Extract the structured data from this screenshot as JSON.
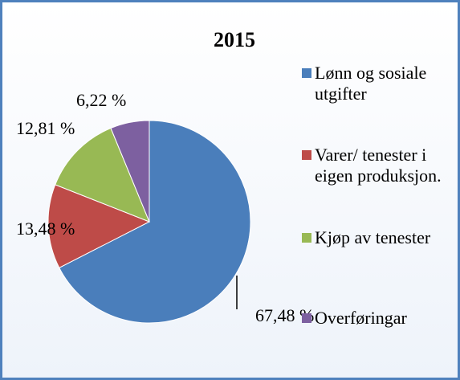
{
  "chart_data": {
    "type": "pie",
    "title": "2015",
    "categories": [
      "Lønn og sosiale utgifter",
      "Varer/ tenester i eigen produksjon.",
      "Kjøp av tenester",
      "Overføringar"
    ],
    "values": [
      67.48,
      13.48,
      12.81,
      6.22
    ],
    "value_labels": [
      "67,48 %",
      "13,48 %",
      "12,81 %",
      "6,22 %"
    ],
    "colors": [
      "#4a7ebb",
      "#be4b48",
      "#98b954",
      "#7d60a0"
    ]
  }
}
